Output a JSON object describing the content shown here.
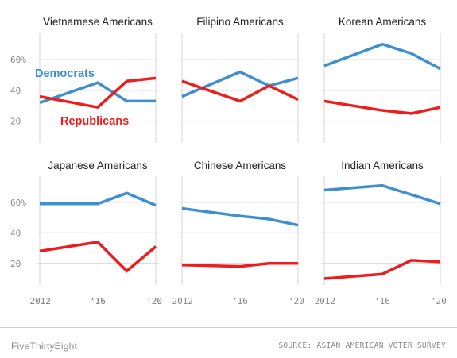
{
  "footer": {
    "brand": "FiveThirtyEight",
    "source": "SOURCE: ASIAN AMERICAN VOTER SURVEY"
  },
  "colors": {
    "democrats": "#3d8fcf",
    "republicans": "#ee1c1c",
    "grid": "#d4d4d4",
    "tick_text": "#888888",
    "title_text": "#222222"
  },
  "chart_data": [
    {
      "type": "line",
      "title": "Vietnamese Americans",
      "x": [
        2012,
        2016,
        2018,
        2020
      ],
      "xticklabels": [
        "2012",
        "’16",
        "’20"
      ],
      "ylim": [
        10,
        75
      ],
      "yticklabels": [
        "60%",
        "40",
        "20"
      ],
      "grid": true,
      "annotations": [
        "Democrats",
        "Republicans"
      ],
      "series": [
        {
          "name": "Democrats",
          "values": [
            32,
            45,
            33,
            33
          ]
        },
        {
          "name": "Republicans",
          "values": [
            36,
            29,
            46,
            48
          ]
        }
      ]
    },
    {
      "type": "line",
      "title": "Filipino Americans",
      "x": [
        2012,
        2016,
        2018,
        2020
      ],
      "ylim": [
        10,
        75
      ],
      "grid": true,
      "series": [
        {
          "values": [
            36,
            52,
            43,
            48
          ]
        },
        {
          "values": [
            46,
            33,
            43,
            34
          ]
        }
      ]
    },
    {
      "type": "line",
      "title": "Korean Americans",
      "x": [
        2012,
        2016,
        2018,
        2020
      ],
      "ylim": [
        10,
        75
      ],
      "grid": true,
      "series": [
        {
          "values": [
            56,
            70,
            64,
            54
          ]
        },
        {
          "values": [
            33,
            27,
            25,
            29
          ]
        }
      ]
    },
    {
      "type": "line",
      "title": "Japanese Americans",
      "x": [
        2012,
        2016,
        2018,
        2020
      ],
      "xticklabels": [
        "2012",
        "’16",
        "’20"
      ],
      "ylim": [
        10,
        75
      ],
      "yticklabels": [
        "60%",
        "40",
        "20"
      ],
      "grid": true,
      "series": [
        {
          "values": [
            59,
            59,
            66,
            58
          ]
        },
        {
          "values": [
            28,
            34,
            15,
            31
          ]
        }
      ]
    },
    {
      "type": "line",
      "title": "Chinese Americans",
      "x": [
        2012,
        2016,
        2018,
        2020
      ],
      "xticklabels": [
        "2012",
        "’16",
        "’20"
      ],
      "ylim": [
        10,
        75
      ],
      "grid": true,
      "series": [
        {
          "values": [
            56,
            51,
            49,
            45
          ]
        },
        {
          "values": [
            19,
            18,
            20,
            20
          ]
        }
      ]
    },
    {
      "type": "line",
      "title": "Indian Americans",
      "x": [
        2012,
        2016,
        2018,
        2020
      ],
      "xticklabels": [
        "2012",
        "’16",
        "’20"
      ],
      "ylim": [
        10,
        75
      ],
      "grid": true,
      "series": [
        {
          "values": [
            68,
            71,
            65,
            59
          ]
        },
        {
          "values": [
            10,
            13,
            22,
            21
          ]
        }
      ]
    }
  ]
}
